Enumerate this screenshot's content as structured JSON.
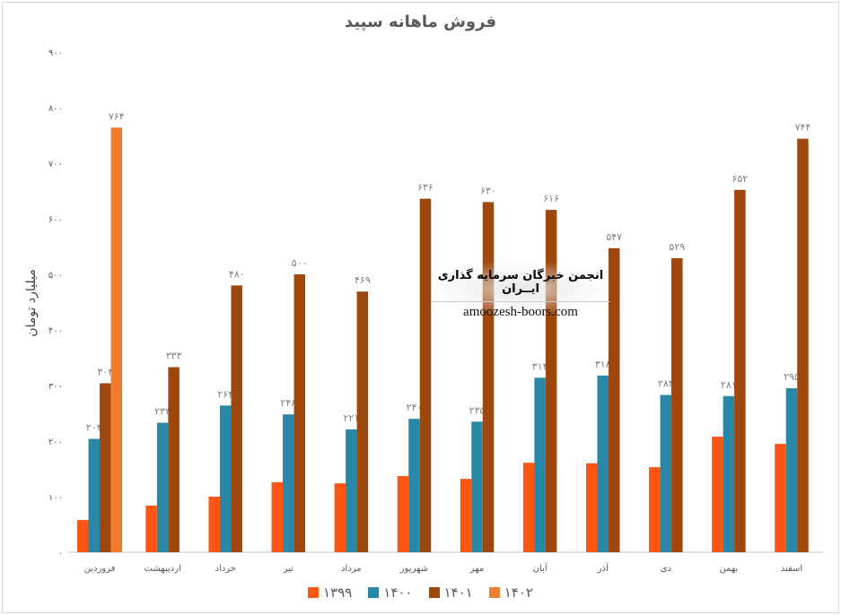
{
  "chart_data": {
    "type": "bar",
    "title": "فروش ماهانه سپید",
    "ylabel": "میلیارد تومان",
    "xlabel": "",
    "ylim": [
      0,
      900
    ],
    "ytick_step": 100,
    "grid": false,
    "legend_position": "bottom",
    "categories": [
      "فروردین",
      "اردیبهشت",
      "خرداد",
      "تیر",
      "مرداد",
      "شهریور",
      "مهر",
      "آبان",
      "آذر",
      "دی",
      "بهمن",
      "اسفند"
    ],
    "series": [
      {
        "name": "۱۳۹۹",
        "color": "#FF5513",
        "labels": false,
        "values": [
          58,
          84,
          100,
          126,
          124,
          137,
          132,
          161,
          160,
          153,
          208,
          195
        ]
      },
      {
        "name": "۱۴۰۰",
        "color": "#2988A8",
        "labels": true,
        "values": [
          204,
          233,
          264,
          248,
          221,
          240,
          235,
          314,
          318,
          283,
          281,
          295
        ]
      },
      {
        "name": "۱۴۰۱",
        "color": "#9E480E",
        "labels": true,
        "values": [
          304,
          333,
          480,
          500,
          469,
          636,
          630,
          616,
          547,
          529,
          652,
          744
        ]
      },
      {
        "name": "۱۴۰۲",
        "color": "#ED7D31",
        "labels": true,
        "values": [
          764,
          null,
          null,
          null,
          null,
          null,
          null,
          null,
          null,
          null,
          null,
          null
        ]
      }
    ]
  },
  "watermark": {
    "line1": "انجمن خبرگان سرمایه گذاری ایــران",
    "line2": "amoozesh-boors.com"
  }
}
